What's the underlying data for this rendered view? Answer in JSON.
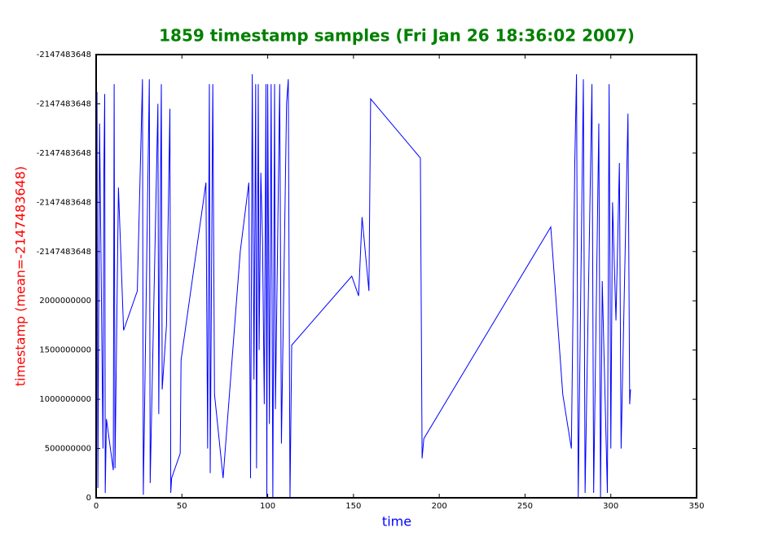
{
  "chart_data": {
    "type": "line",
    "title": "1859 timestamp samples (Fri Jan 26 18:36:02 2007)",
    "x_label": "time",
    "y_label": "timestamp (mean=-2147483648)",
    "x": [
      0,
      0.5,
      1,
      2,
      4,
      4.5,
      5,
      5.3,
      6,
      10,
      10.5,
      11,
      13,
      16,
      24,
      27,
      27.5,
      31,
      31.5,
      36,
      36.5,
      37,
      38,
      38.5,
      41,
      43,
      43.5,
      44,
      49,
      49.5,
      64,
      65,
      66,
      66.5,
      68,
      69,
      74,
      84,
      89,
      90,
      91,
      92,
      93,
      93.5,
      94.5,
      95,
      96,
      97,
      98,
      99,
      99.5,
      100,
      101,
      102,
      103,
      104,
      104.5,
      107,
      108,
      111,
      112,
      113,
      114,
      149,
      153,
      155,
      159,
      160,
      189,
      190,
      191,
      265,
      272,
      277,
      279,
      280,
      281,
      284,
      285,
      289,
      290,
      293,
      294,
      295,
      298,
      299,
      300,
      301,
      303,
      305,
      306,
      310,
      311,
      311.5
    ],
    "series": [
      {
        "color": "#0000ff",
        "values": [
          0,
          4120000000,
          100000000,
          3800000000,
          500000000,
          3300000000,
          4100000000,
          50000000,
          800000000,
          280000000,
          4200000000,
          300000000,
          3150000000,
          1700000000,
          2100000000,
          4250000000,
          30000000,
          4250000000,
          150000000,
          4000000000,
          850000000,
          2100000000,
          4200000000,
          1100000000,
          1750000000,
          3950000000,
          50000000,
          200000000,
          450000000,
          1400000000,
          3200000000,
          500000000,
          4200000000,
          250000000,
          4200000000,
          1050000000,
          200000000,
          2500000000,
          3200000000,
          200000000,
          4300000000,
          1200000000,
          4200000000,
          300000000,
          4200000000,
          1500000000,
          3300000000,
          2600000000,
          950000000,
          4200000000,
          0,
          4200000000,
          750000000,
          4200000000,
          0,
          4200000000,
          900000000,
          4200000000,
          550000000,
          4000000000,
          4250000000,
          0,
          1550000000,
          2250000000,
          2050000000,
          2850000000,
          2100000000,
          4050000000,
          3450000000,
          400000000,
          600000000,
          2750000000,
          1050000000,
          500000000,
          3400000000,
          4300000000,
          0,
          4250000000,
          50000000,
          4200000000,
          50000000,
          3800000000,
          0,
          2200000000,
          50000000,
          4200000000,
          500000000,
          3000000000,
          1800000000,
          3400000000,
          500000000,
          3900000000,
          950000000,
          1100000000
        ]
      }
    ],
    "xlim": [
      0,
      350
    ],
    "xticks": [
      0,
      50,
      100,
      150,
      200,
      250,
      300,
      350
    ],
    "ylim": [
      0,
      4500000000
    ],
    "yticks": [
      0,
      500000000,
      1000000000,
      1500000000,
      2000000000,
      {
        "value": 2500000000,
        "label": "-2147483648"
      },
      {
        "value": 3000000000,
        "label": "-2147483648"
      },
      {
        "value": 3500000000,
        "label": "-2147483648"
      },
      {
        "value": 4000000000,
        "label": "-2147483648"
      },
      {
        "value": 4500000000,
        "label": "-2147483648"
      }
    ],
    "title_color": "#008000",
    "x_label_color": "#0000ff",
    "y_label_color": "#ff0000"
  }
}
